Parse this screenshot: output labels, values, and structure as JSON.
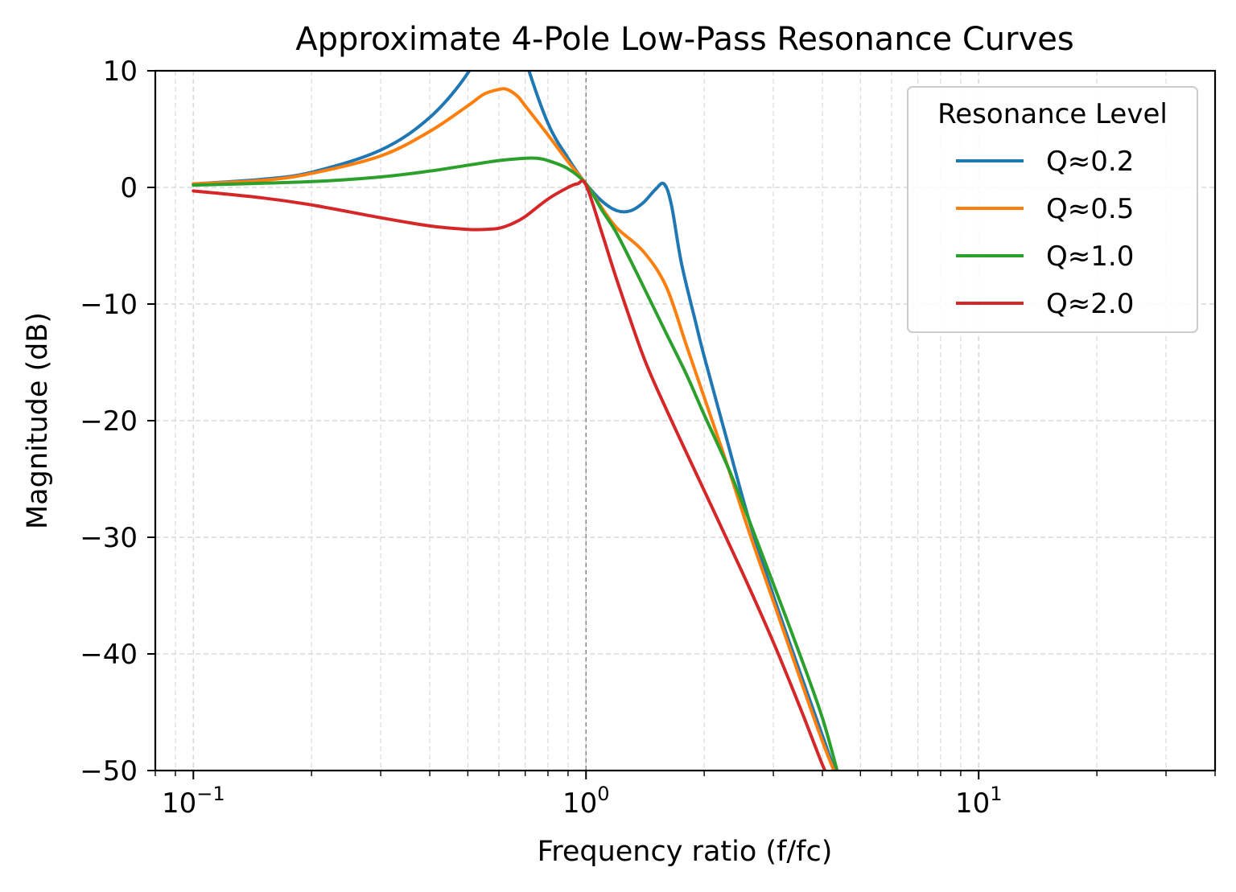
{
  "chart_data": {
    "type": "line",
    "title": "Approximate 4-Pole Low-Pass Resonance Curves",
    "xlabel": "Frequency ratio (f/fc)",
    "ylabel": "Magnitude (dB)",
    "x_scale": "log",
    "xlim": [
      0.08,
      40
    ],
    "ylim": [
      -50,
      10
    ],
    "x_ticks": [
      {
        "value": 0.1,
        "base": "10",
        "exp": "−1"
      },
      {
        "value": 1,
        "base": "10",
        "exp": "0"
      },
      {
        "value": 10,
        "base": "10",
        "exp": "1"
      }
    ],
    "y_ticks": [
      {
        "value": 10,
        "label": "10"
      },
      {
        "value": 0,
        "label": "0"
      },
      {
        "value": -10,
        "label": "−10"
      },
      {
        "value": -20,
        "label": "−20"
      },
      {
        "value": -30,
        "label": "−30"
      },
      {
        "value": -40,
        "label": "−40"
      },
      {
        "value": -50,
        "label": "−50"
      }
    ],
    "grid": true,
    "vline": {
      "x": 1,
      "style": "dashed",
      "color": "#808080"
    },
    "legend": {
      "title": "Resonance Level",
      "position": "top-right"
    },
    "series": [
      {
        "name": "Q≈0.2",
        "color": "#1f77b4",
        "x": [
          0.1,
          0.15,
          0.2,
          0.3,
          0.4,
          0.5,
          0.55,
          0.6,
          0.65,
          0.7,
          0.8,
          0.9,
          1.0,
          1.1,
          1.2,
          1.3,
          1.4,
          1.5,
          1.58,
          1.65,
          1.75,
          1.9,
          2.0,
          2.3,
          2.6,
          3.0,
          3.5,
          4.0,
          4.4
        ],
        "y": [
          0.3,
          0.7,
          1.3,
          3.2,
          6.0,
          9.8,
          13.0,
          16.0,
          15.0,
          11.0,
          5.5,
          2.5,
          0.3,
          -1.2,
          -2.0,
          -2.0,
          -1.3,
          -0.2,
          0.3,
          -1.5,
          -6.5,
          -11.5,
          -14.5,
          -22.0,
          -28.5,
          -35.0,
          -41.5,
          -47.0,
          -51.0
        ]
      },
      {
        "name": "Q≈0.5",
        "color": "#ff7f0e",
        "x": [
          0.1,
          0.15,
          0.2,
          0.3,
          0.4,
          0.5,
          0.55,
          0.6,
          0.63,
          0.67,
          0.7,
          0.8,
          0.9,
          1.0,
          1.1,
          1.2,
          1.4,
          1.6,
          1.8,
          2.0,
          2.3,
          2.6,
          3.0,
          3.5,
          4.0,
          4.4
        ],
        "y": [
          0.3,
          0.6,
          1.2,
          2.7,
          4.8,
          7.0,
          8.0,
          8.4,
          8.4,
          7.8,
          7.0,
          4.5,
          2.2,
          0.3,
          -1.8,
          -3.5,
          -5.5,
          -8.5,
          -13.5,
          -18.0,
          -24.0,
          -29.5,
          -35.5,
          -42.0,
          -47.5,
          -51.0
        ]
      },
      {
        "name": "Q≈1.0",
        "color": "#2ca02c",
        "x": [
          0.1,
          0.2,
          0.3,
          0.4,
          0.5,
          0.6,
          0.7,
          0.75,
          0.8,
          0.9,
          1.0,
          1.1,
          1.2,
          1.4,
          1.6,
          1.8,
          2.0,
          2.3,
          2.6,
          3.0,
          3.5,
          4.0,
          4.4
        ],
        "y": [
          0.2,
          0.5,
          0.9,
          1.4,
          1.9,
          2.3,
          2.5,
          2.5,
          2.3,
          1.6,
          0.3,
          -2.0,
          -4.0,
          -8.5,
          -12.5,
          -16.0,
          -19.5,
          -24.0,
          -28.5,
          -34.0,
          -40.0,
          -45.5,
          -50.5
        ]
      },
      {
        "name": "Q≈2.0",
        "color": "#d62728",
        "x": [
          0.1,
          0.15,
          0.2,
          0.3,
          0.4,
          0.5,
          0.55,
          0.6,
          0.65,
          0.7,
          0.8,
          0.9,
          0.95,
          1.0,
          1.1,
          1.2,
          1.4,
          1.6,
          2.0,
          2.5,
          3.0,
          3.5,
          4.0,
          4.2
        ],
        "y": [
          -0.3,
          -0.9,
          -1.5,
          -2.6,
          -3.3,
          -3.6,
          -3.6,
          -3.5,
          -3.1,
          -2.5,
          -1.0,
          0.0,
          0.3,
          0.2,
          -4.0,
          -8.0,
          -14.5,
          -19.0,
          -26.0,
          -33.0,
          -39.0,
          -44.5,
          -49.5,
          -51.0
        ]
      }
    ]
  }
}
